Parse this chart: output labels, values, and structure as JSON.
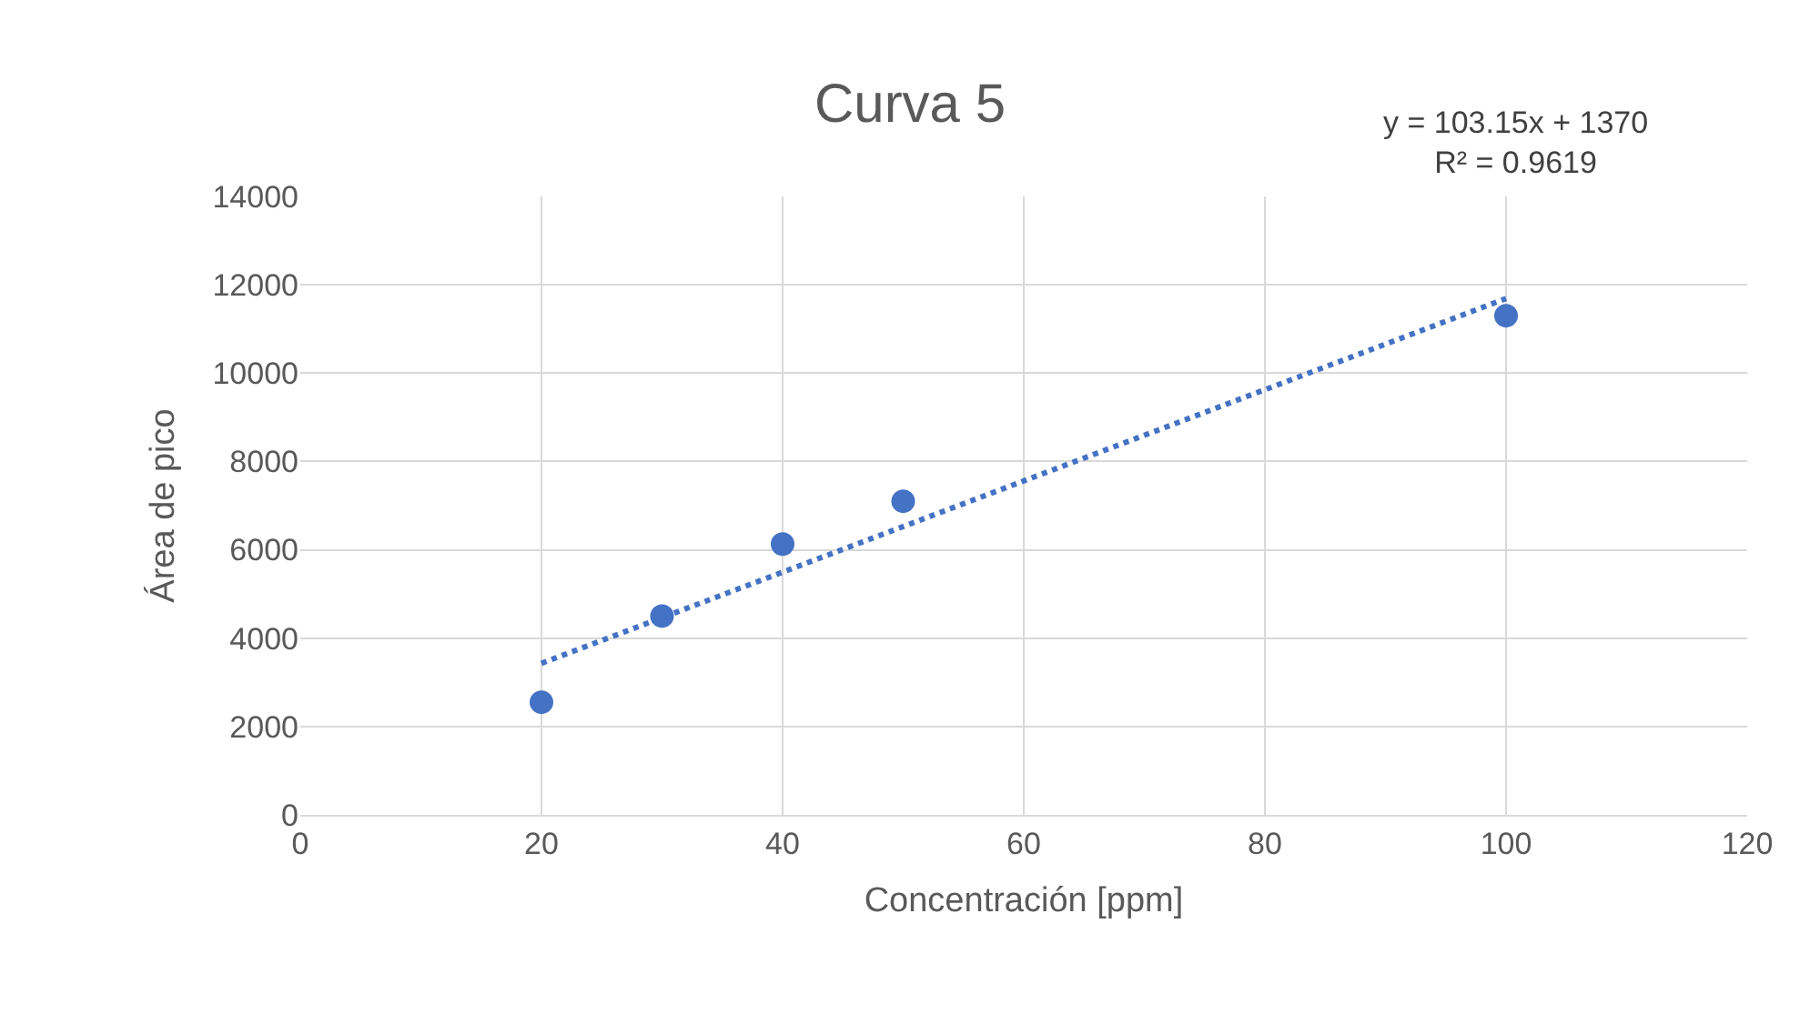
{
  "chart_data": {
    "type": "scatter",
    "title": "Curva 5",
    "xlabel": "Concentración [ppm]",
    "ylabel": "Área de pico",
    "annotations": [
      "y = 103.15x + 1370\nR² = 0.9619"
    ],
    "series": [
      {
        "color": "#4472c4",
        "x": [
          20,
          30,
          40,
          50,
          100
        ],
        "values": [
          2550,
          4500,
          6130,
          7100,
          11300
        ],
        "marker": "circle"
      },
      {
        "type": "line",
        "color": "#4472c4",
        "x": [
          20,
          100
        ],
        "values": [
          3430,
          11690
        ],
        "line_style": "dotted",
        "marker": "none"
      }
    ],
    "xlim": [
      0,
      120
    ],
    "xticks": [
      0,
      20,
      40,
      60,
      80,
      100,
      120
    ],
    "ylim": [
      0,
      14000
    ],
    "yticks": [
      0,
      2000,
      4000,
      6000,
      8000,
      10000,
      12000,
      14000
    ],
    "grid": true
  }
}
